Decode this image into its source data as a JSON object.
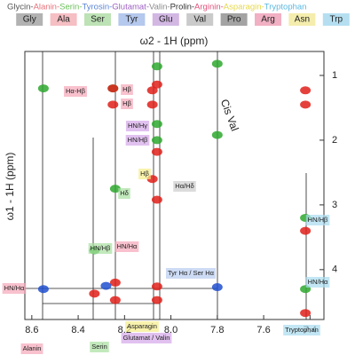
{
  "header": {
    "full_names": [
      "Glycin-",
      "Alanin-",
      "Serin-",
      "Tyrosin-",
      "Glutamat-",
      "Valin-",
      "Prolin-",
      "Arginin-",
      "Asparagin-",
      "Tryptophan"
    ],
    "abbreviations": [
      "Gly",
      "Ala",
      "Ser",
      "Tyr",
      "Glu",
      "Val",
      "Pro",
      "Arg",
      "Asn",
      "Trp"
    ],
    "colors": [
      "#555555",
      "#e8707a",
      "#6cbf5a",
      "#5b86d6",
      "#9b5fc0",
      "#8a8a8a",
      "#333333",
      "#e0507a",
      "#e6d84a",
      "#5ab8e0"
    ]
  },
  "chart_data": {
    "type": "scatter",
    "xlabel": "ω2 - 1H (ppm)",
    "ylabel": "ω1 - 1H (ppm)",
    "xlim": [
      8.63,
      7.34
    ],
    "ylim": [
      0.63,
      4.77
    ],
    "xticks": [
      8.6,
      8.4,
      8.2,
      {
        "value": 8.0,
        "label": "8.0"
      },
      7.8,
      7.6,
      7.4
    ],
    "yticks": [
      1,
      2,
      3,
      4
    ],
    "series": [
      {
        "color": "#2ea82e",
        "x": [
          8.55,
          8.25,
          8.06,
          8.06,
          7.8,
          7.8,
          8.24,
          7.42,
          8.33,
          7.42,
          8.06
        ],
        "values": [
          1.2,
          1.2,
          0.86,
          1.75,
          0.82,
          1.92,
          2.75,
          3.2,
          3.7,
          4.3,
          2.0
        ]
      },
      {
        "color": "#e0201a",
        "x": [
          8.25,
          8.25,
          8.06,
          8.08,
          8.08,
          8.06,
          7.42,
          7.42,
          8.08,
          8.06,
          7.42,
          8.24,
          8.06,
          8.06,
          7.42,
          8.33,
          8.24
        ],
        "values": [
          1.2,
          1.45,
          1.14,
          1.23,
          1.45,
          2.18,
          1.23,
          1.45,
          2.6,
          2.92,
          3.4,
          4.2,
          4.26,
          4.47,
          4.67,
          4.37,
          4.47
        ]
      },
      {
        "color": "#2050d0",
        "x": [
          8.55,
          7.8,
          8.28
        ],
        "values": [
          4.3,
          4.27,
          4.25
        ]
      }
    ],
    "annotations": [
      "Hα-Hβ",
      "Hβ",
      "Hβ",
      "HN/Hγ",
      "HN/Hβ",
      "Hβ",
      "Hδ",
      "Hα/Hδ",
      "Cis Val",
      "HN/Hβ",
      "HN/Hβ",
      "HN/Hα",
      "HN/Hα",
      "HN/Hα",
      "Tyr Hα / Ser Hα",
      "Alanin",
      "Serin",
      "Glutamat / Valin",
      "Asparagin",
      "Tryptophan"
    ],
    "annotation_colors": [
      "#f5a6b8",
      "#f5a6b8",
      "#f5a6b8",
      "#d4a6e8",
      "#d4a6e8",
      "#f5ec8a",
      "#a8e0a0",
      "#cccccc",
      "none",
      "#a8dcf0",
      "#a8e0a0",
      "#f5a6b8",
      "#a8dcf0",
      "#f5a6b8",
      "#b8ccf0",
      "#f5a6b8",
      "#a8e0a0",
      "#d4a6e8",
      "#f5ec8a",
      "#a8dcf0"
    ]
  }
}
